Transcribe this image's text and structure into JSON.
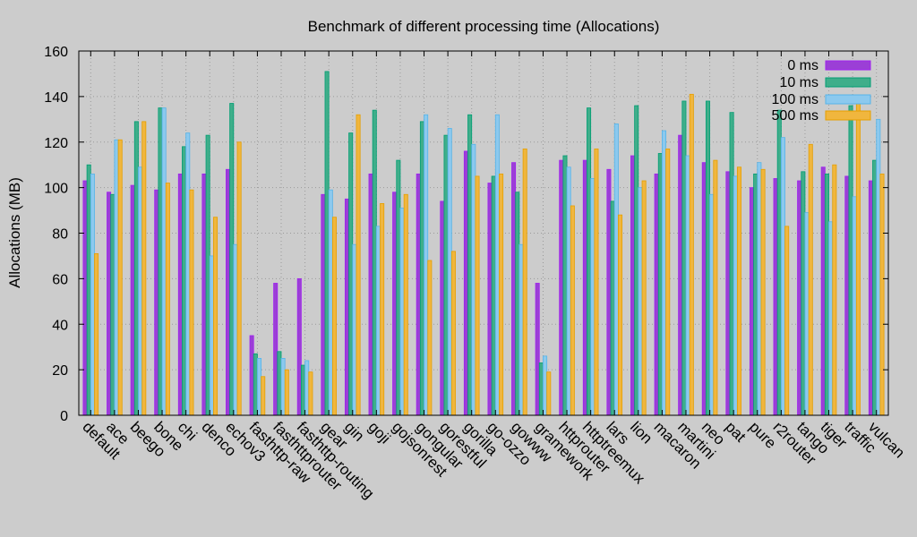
{
  "chart_data": {
    "type": "bar",
    "title": "Benchmark of different processing time (Allocations)",
    "xlabel": "",
    "ylabel": "Allocations (MB)",
    "ylim": [
      0,
      160
    ],
    "yticks": [
      0,
      20,
      40,
      60,
      80,
      100,
      120,
      140,
      160
    ],
    "grid": true,
    "legend_position": "top-right",
    "categories": [
      "default",
      "ace",
      "beego",
      "bone",
      "chi",
      "denco",
      "echov3",
      "fasthttp-raw",
      "fasthttprouter",
      "fasthttp-routing",
      "gear",
      "gin",
      "goji",
      "gojsonrest",
      "gongular",
      "gorestful",
      "gorilla",
      "go-ozzo",
      "gowww",
      "gramework",
      "httprouter",
      "httptreemux",
      "lars",
      "lion",
      "macaron",
      "martini",
      "neo",
      "pat",
      "pure",
      "r2router",
      "tango",
      "tiger",
      "traffic",
      "vulcan"
    ],
    "series": [
      {
        "name": "0 ms",
        "color": "#a020f0",
        "fill": "#9b3fd6",
        "values": [
          103,
          98,
          101,
          99,
          106,
          106,
          108,
          35,
          58,
          60,
          97,
          95,
          106,
          98,
          106,
          94,
          116,
          102,
          111,
          58,
          112,
          112,
          108,
          114,
          106,
          123,
          111,
          107,
          100,
          104,
          103,
          109,
          105,
          103
        ]
      },
      {
        "name": "10 ms",
        "color": "#009e73",
        "fill": "#3fae8a",
        "values": [
          110,
          97,
          129,
          135,
          118,
          123,
          137,
          27,
          28,
          22,
          151,
          124,
          134,
          112,
          129,
          123,
          132,
          105,
          98,
          23,
          114,
          135,
          94,
          136,
          115,
          138,
          138,
          133,
          106,
          134,
          107,
          106,
          136,
          112
        ]
      },
      {
        "name": "100 ms",
        "color": "#56b4e9",
        "fill": "#8cc9ee",
        "values": [
          106,
          121,
          109,
          135,
          124,
          70,
          75,
          25,
          25,
          24,
          99,
          75,
          83,
          91,
          132,
          126,
          119,
          132,
          75,
          26,
          109,
          104,
          128,
          100,
          125,
          114,
          97,
          105,
          111,
          122,
          89,
          85,
          96,
          130
        ]
      },
      {
        "name": "500 ms",
        "color": "#e69f00",
        "fill": "#f0b63e",
        "values": [
          71,
          121,
          129,
          102,
          99,
          87,
          120,
          17,
          20,
          19,
          87,
          132,
          93,
          97,
          68,
          72,
          105,
          106,
          117,
          19,
          92,
          117,
          88,
          103,
          117,
          141,
          112,
          109,
          108,
          83,
          119,
          110,
          137,
          106
        ]
      }
    ]
  }
}
